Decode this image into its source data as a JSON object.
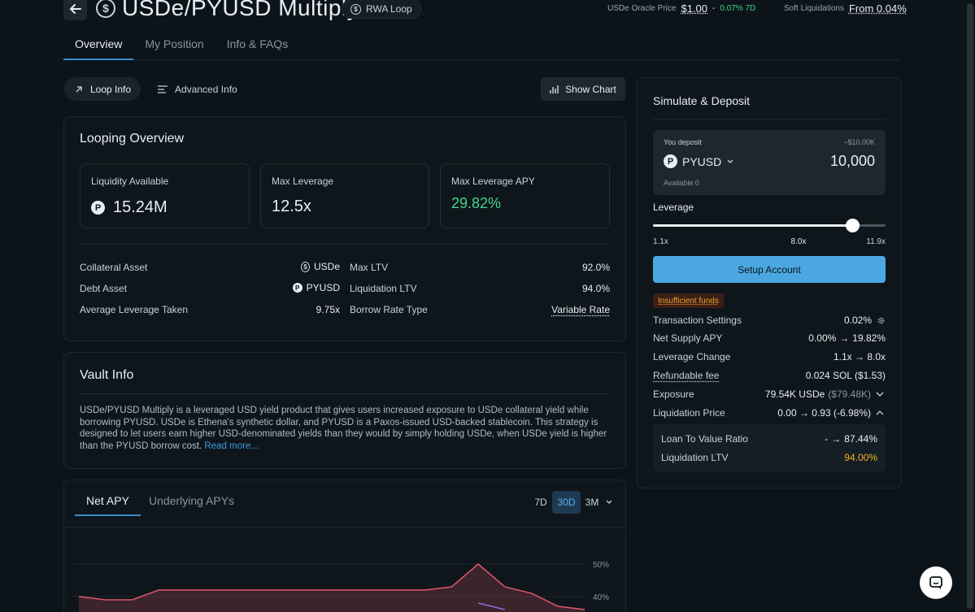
{
  "header": {
    "title": "USDe/PYUSD Multiply",
    "badge": "RWA Loop",
    "oracle_label": "USDe Oracle Price",
    "oracle_price": "$1.00",
    "oracle_sep": "-",
    "oracle_change": "0.07% 7D",
    "soft_liq_label": "Soft Liquidations",
    "soft_liq_value": "From 0.04%"
  },
  "tabs": [
    {
      "label": "Overview",
      "active": true
    },
    {
      "label": "My Position",
      "active": false
    },
    {
      "label": "Info & FAQs",
      "active": false
    }
  ],
  "subnav": {
    "loop_info": "Loop Info",
    "advanced_info": "Advanced Info",
    "show_chart": "Show Chart"
  },
  "looping": {
    "title": "Looping Overview",
    "stats": [
      {
        "label": "Liquidity Available",
        "value": "15.24M",
        "coin_letter": "P"
      },
      {
        "label": "Max Leverage",
        "value": "12.5x"
      },
      {
        "label": "Max Leverage APY",
        "value": "29.82%"
      }
    ],
    "left_rows": [
      {
        "label": "Collateral Asset",
        "value": "USDe",
        "coin_letter": "$"
      },
      {
        "label": "Debt Asset",
        "value": "PYUSD",
        "coin_letter": "P"
      },
      {
        "label": "Average Leverage Taken",
        "value": "9.75x"
      }
    ],
    "right_rows": [
      {
        "label": "Max LTV",
        "value": "92.0%"
      },
      {
        "label": "Liquidation LTV",
        "value": "94.0%"
      },
      {
        "label": "Borrow Rate Type",
        "value": "Variable Rate"
      }
    ]
  },
  "vault": {
    "title": "Vault Info",
    "description": "USDe/PYUSD Multiply is a leveraged USD yield product that gives users increased exposure to USDe collateral yield while borrowing PYUSD. USDe is Ethena's synthetic dollar, and PYUSD is a Paxos-issued USD-backed stablecoin. This strategy is designed to let users earn higher USD-denominated yields than they would by simply holding USDe, when USDe yield is higher than the PYUSD borrow cost.",
    "read_more": "Read more..."
  },
  "apy_chart": {
    "tabs": [
      "Net APY",
      "Underlying APYs"
    ],
    "ranges": [
      "7D",
      "30D",
      "3M"
    ],
    "active_range": "30D"
  },
  "chart_data": {
    "type": "line",
    "title": "",
    "ylabel": "",
    "y_tick_labels": [
      "50%",
      "40%"
    ],
    "series": [
      {
        "values": [
          40,
          39,
          39,
          42,
          42,
          42,
          42,
          42,
          42,
          42,
          42,
          42,
          42,
          42,
          43,
          50,
          43,
          41,
          37,
          36
        ]
      },
      {
        "values": [
          null,
          null,
          null,
          null,
          null,
          null,
          null,
          null,
          null,
          null,
          null,
          null,
          null,
          null,
          null,
          38,
          36,
          null,
          null,
          null
        ]
      }
    ],
    "colors": {
      "primary": "#e0566b",
      "secondary": "#8a6de0"
    }
  },
  "simulate": {
    "title": "Simulate & Deposit",
    "you_deposit": "You deposit",
    "usd_value": "~$10.00K",
    "token": "PYUSD",
    "amount": "10,000",
    "available": "Available 0",
    "leverage_label": "Leverage",
    "leverage_min": "1.1x",
    "leverage_current": "8.0x",
    "leverage_max": "11.9x",
    "leverage_fraction": 0.857,
    "setup_button": "Setup Account",
    "insufficient": "Insufficient funds",
    "rows": {
      "tx_settings_label": "Transaction Settings",
      "tx_settings_value": "0.02%",
      "net_supply_label": "Net Supply APY",
      "net_supply_from": "0.00%",
      "net_supply_to": "19.82%",
      "leverage_change_label": "Leverage Change",
      "leverage_change_value": "1.1x → 8.0x",
      "refundable_label": "Refundable fee",
      "refundable_value": "0.024 SOL ($1.53)",
      "exposure_label": "Exposure",
      "exposure_value": "79.54K USDe",
      "exposure_usd": "($79.48K)",
      "liq_price_label": "Liquidation Price",
      "liq_price_value": "0.00 → 0.93 (-6.98%)",
      "ltv_ratio_label": "Loan To Value Ratio",
      "ltv_ratio_from": "-",
      "ltv_ratio_to": "87.44%",
      "liq_ltv_label": "Liquidation LTV",
      "liq_ltv_value": "94.00%"
    }
  }
}
